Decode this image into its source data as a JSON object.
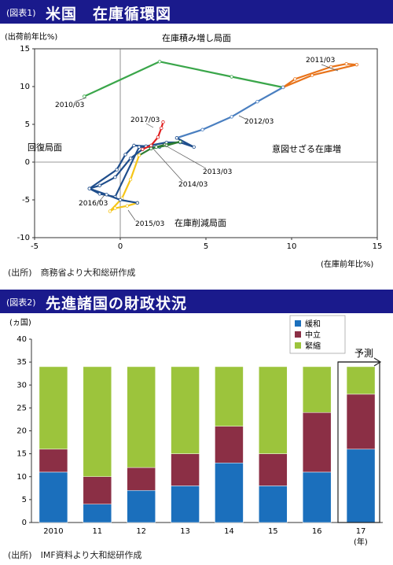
{
  "chart1": {
    "tag": "(図表1)",
    "title": "米国　在庫循環図",
    "ylabel": "(出荷前年比%)",
    "xlabel": "(在庫前年比%)",
    "source": "(出所)　商務省より大和総研作成",
    "xlim": [
      -5,
      15
    ],
    "ylim": [
      -10,
      15
    ],
    "xticks": [
      -5,
      0,
      5,
      10,
      15
    ],
    "yticks": [
      15,
      10,
      5,
      0,
      -5,
      -10
    ],
    "quadrant_labels": {
      "top": "在庫積み増し局面",
      "left": "回復局面",
      "right": "意図せざる在庫増",
      "bottom": "在庫削減局面"
    },
    "point_labels": {
      "y2010": "2010/03",
      "y2011": "2011/03",
      "y2012": "2012/03",
      "y2013": "2013/03",
      "y2014": "2014/03",
      "y2015": "2015/03",
      "y2016": "2016/03",
      "y2017": "2017/03"
    }
  },
  "chart_data": [
    {
      "type": "line",
      "title": "米国　在庫循環図",
      "xlabel": "(在庫前年比%)",
      "ylabel": "(出荷前年比%)",
      "xlim": [
        -5,
        15
      ],
      "ylim": [
        -10,
        15
      ],
      "series": [
        {
          "name": "2010/03",
          "color": "#3aa64a",
          "x": [
            -2.1,
            2.3,
            6.5,
            9.5
          ],
          "y": [
            8.7,
            13.3,
            11.3,
            9.9
          ]
        },
        {
          "name": "2011/03",
          "color": "#e8731a",
          "x": [
            9.5,
            11.2,
            13.8,
            13.2,
            12.3,
            10.2,
            9.5
          ],
          "y": [
            9.9,
            11.5,
            12.9,
            13.0,
            12.6,
            11.0,
            9.9
          ]
        },
        {
          "name": "2012/03",
          "color": "#4a7fc0",
          "x": [
            9.5,
            8.0,
            6.5,
            4.8,
            3.3
          ],
          "y": [
            9.9,
            8.0,
            6.0,
            4.3,
            3.2
          ]
        },
        {
          "name": "2013/03",
          "color": "#1f4e8c",
          "x": [
            3.3,
            4.3,
            3.5,
            2.7,
            1.5,
            0.8,
            0.3,
            -0.2,
            -1.8,
            -1.2,
            -0.3,
            1.1,
            2.3,
            1.8
          ],
          "y": [
            3.2,
            2.0,
            2.6,
            2.6,
            2.1,
            2.2,
            1.0,
            -1.0,
            -3.5,
            -4.2,
            -4.6,
            2.0,
            2.0,
            1.8
          ]
        },
        {
          "name": "2014/03",
          "color": "#2e7d32",
          "x": [
            1.8,
            2.1,
            2.6,
            3.5,
            2.7,
            1.8,
            1.1
          ],
          "y": [
            1.8,
            2.0,
            2.3,
            2.7,
            2.2,
            1.8,
            0.9
          ]
        },
        {
          "name": "2015/03",
          "color": "#f5c518",
          "x": [
            1.1,
            0.6,
            0.1,
            -0.6,
            -0.3,
            0.4,
            1.0
          ],
          "y": [
            0.9,
            -2.3,
            -4.8,
            -6.5,
            -6.1,
            -5.8,
            -5.4
          ]
        },
        {
          "name": "2016/03",
          "color": "#1f4e8c",
          "x": [
            1.0,
            0.0,
            -0.8,
            -1.8,
            -1.2,
            -0.3,
            0.6,
            1.3
          ],
          "y": [
            -5.4,
            -5.0,
            -4.3,
            -3.5,
            -3.1,
            -2.0,
            0.5,
            1.7
          ]
        },
        {
          "name": "2017/03",
          "color": "#e02020",
          "x": [
            1.3,
            1.8,
            2.2,
            2.4,
            2.5
          ],
          "y": [
            1.7,
            2.2,
            3.3,
            4.5,
            5.3
          ]
        }
      ]
    },
    {
      "type": "bar",
      "title": "先進諸国の財政状況",
      "xlabel": "(年)",
      "ylabel": "(ヵ国)",
      "ylim": [
        0,
        40
      ],
      "categories": [
        "2010",
        "11",
        "12",
        "13",
        "14",
        "15",
        "16",
        "17"
      ],
      "series": [
        {
          "name": "緩和",
          "color": "#1b6fbc",
          "values": [
            11,
            4,
            7,
            8,
            13,
            8,
            11,
            16
          ]
        },
        {
          "name": "中立",
          "color": "#8b2f45",
          "values": [
            5,
            6,
            5,
            7,
            8,
            7,
            13,
            12
          ]
        },
        {
          "name": "緊縮",
          "color": "#9cc43c",
          "values": [
            18,
            24,
            22,
            19,
            13,
            19,
            10,
            6
          ]
        }
      ]
    }
  ],
  "chart2": {
    "tag": "(図表2)",
    "title": "先進諸国の財政状況",
    "ylabel": "(ヵ国)",
    "xlabel": "(年)",
    "forecast_label": "予測",
    "source": "(出所)　IMF資料より大和総研作成",
    "yticks": [
      40,
      35,
      30,
      25,
      20,
      15,
      10,
      5,
      0
    ]
  }
}
